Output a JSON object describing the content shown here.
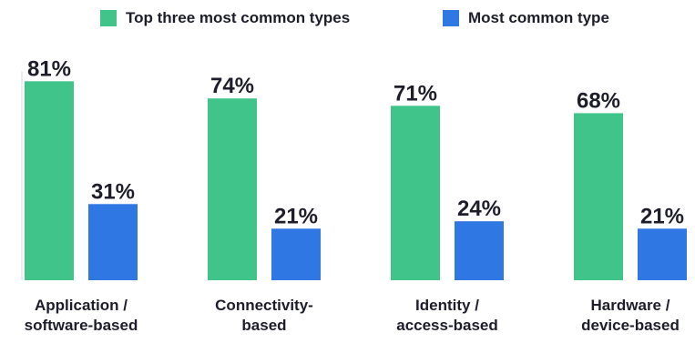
{
  "colors": {
    "series_top_three": "#40c48a",
    "series_most_common": "#2f78e3",
    "axis": "#dddddd",
    "text": "#1d1d2b"
  },
  "chart_data": {
    "type": "bar",
    "title": "",
    "xlabel": "",
    "ylabel": "",
    "ylim": [
      0,
      100
    ],
    "grid": false,
    "legend_position": "top",
    "categories": [
      [
        "Application /",
        "software-based"
      ],
      [
        "Connectivity-",
        "based"
      ],
      [
        "Identity /",
        "access-based"
      ],
      [
        "Hardware /",
        "device-based"
      ]
    ],
    "series": [
      {
        "name": "Top three most common types",
        "values": [
          81,
          74,
          71,
          68
        ],
        "labels": [
          "81%",
          "74%",
          "71%",
          "68%"
        ],
        "color": "#40c48a"
      },
      {
        "name": "Most common type",
        "values": [
          31,
          21,
          24,
          21
        ],
        "labels": [
          "31%",
          "21%",
          "24%",
          "21%"
        ],
        "color": "#2f78e3"
      }
    ]
  }
}
